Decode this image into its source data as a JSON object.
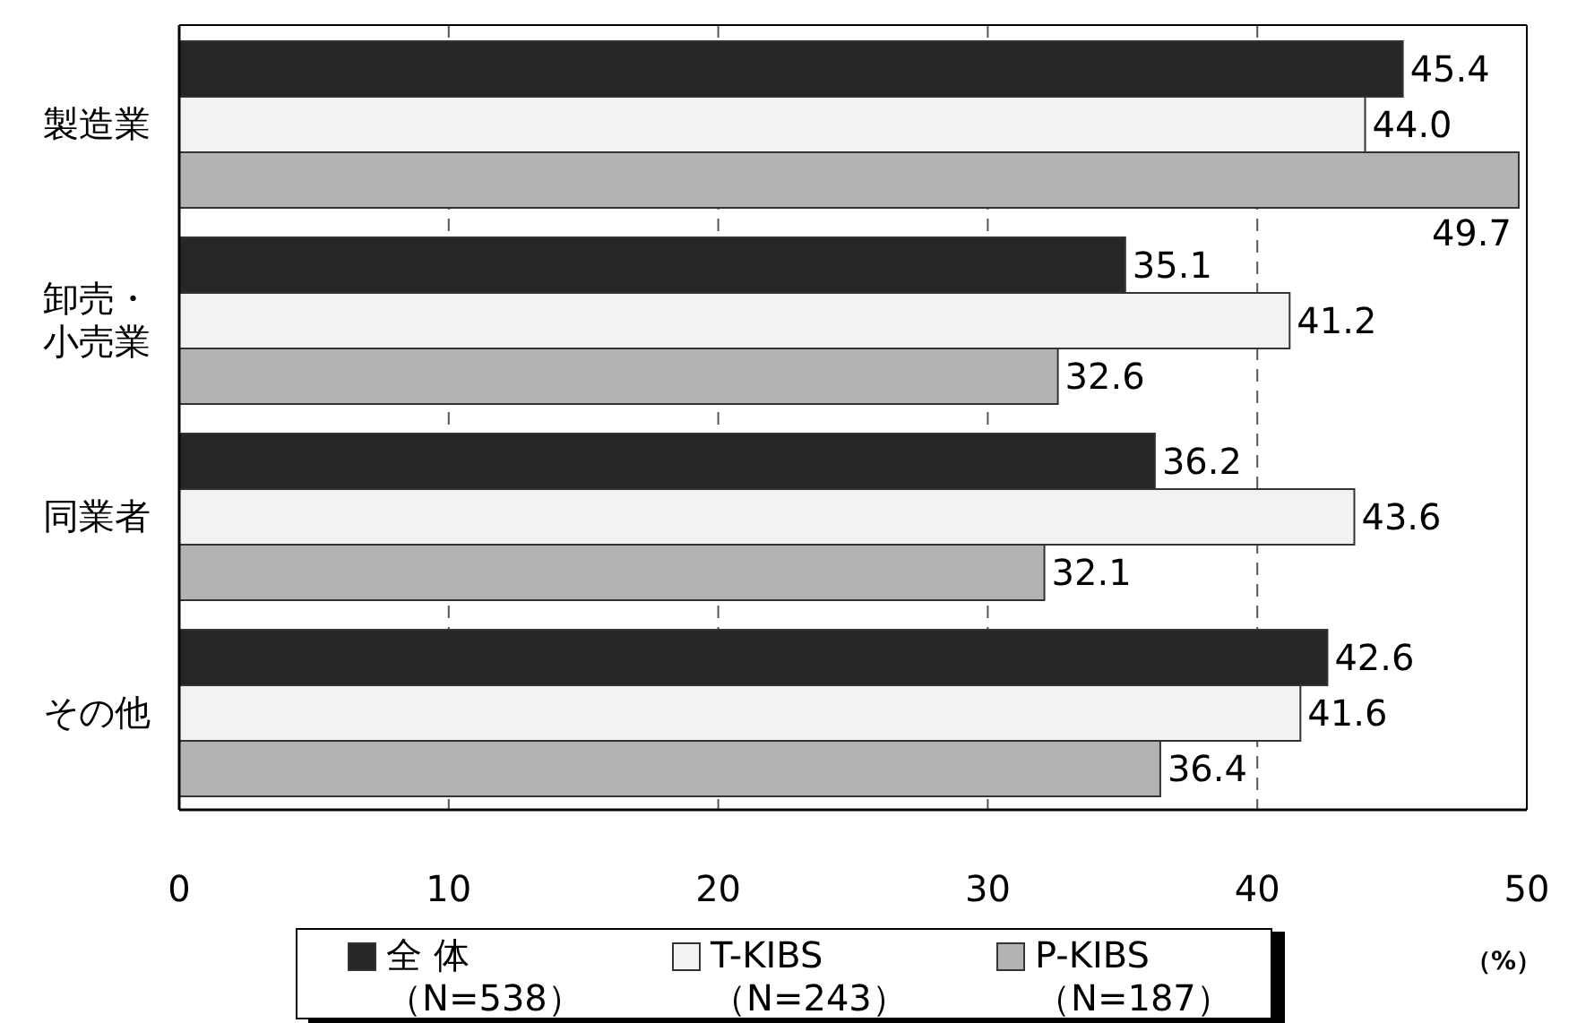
{
  "chart_data": {
    "type": "bar",
    "orientation": "horizontal",
    "categories": [
      "製造業",
      "卸売・小売業",
      "同業者",
      "その他"
    ],
    "series": [
      {
        "name": "全 体（N=538）",
        "color": "#262626",
        "values": [
          45.4,
          35.1,
          36.2,
          42.6
        ],
        "value_labels": [
          "45.4",
          "35.1",
          "36.2",
          "42.6"
        ]
      },
      {
        "name": "T-KIBS（N=243）",
        "color": "#f2f2f2",
        "values": [
          44.0,
          41.2,
          43.6,
          41.6
        ],
        "value_labels": [
          "44.0",
          "41.2",
          "43.6",
          "41.6"
        ]
      },
      {
        "name": "P-KIBS（N=187）",
        "color": "#b3b3b3",
        "values": [
          49.7,
          32.6,
          32.1,
          36.4
        ],
        "value_labels": [
          "49.7",
          "32.6",
          "32.1",
          "36.4"
        ]
      }
    ],
    "xlim": [
      0,
      50
    ],
    "xticks": [
      0,
      10,
      20,
      30,
      40,
      50
    ],
    "xlabel": "（%）",
    "grid": "x",
    "legend": "bottom"
  }
}
